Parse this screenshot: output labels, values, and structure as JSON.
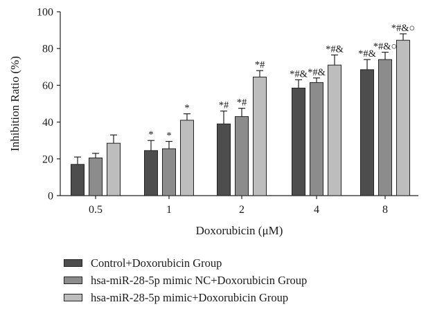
{
  "chart_data": {
    "type": "bar",
    "categories": [
      "0.5",
      "1",
      "2",
      "4",
      "8"
    ],
    "series": [
      {
        "name": "Control+Doxorubicin Group",
        "color": "#4d4d4d",
        "values": [
          17,
          24.5,
          39,
          58.5,
          68.5
        ],
        "errors": [
          4,
          5.5,
          7,
          4.5,
          5.5
        ],
        "annotations": [
          "",
          "*",
          "*#",
          "*#&",
          "*#&"
        ]
      },
      {
        "name": "hsa-miR-28-5p mimic NC+Doxorubicin Group",
        "color": "#8c8c8c",
        "values": [
          20.5,
          25.5,
          43,
          61.5,
          74
        ],
        "errors": [
          2.5,
          4,
          4.5,
          2.5,
          4
        ],
        "annotations": [
          "",
          "*",
          "*#",
          "*#&",
          "*#&○"
        ]
      },
      {
        "name": "hsa-miR-28-5p mimic+Doxorubicin Group",
        "color": "#bdbdbd",
        "values": [
          28.5,
          41,
          64.5,
          71,
          84.5
        ],
        "errors": [
          4.5,
          3.5,
          3.5,
          5.5,
          3.5
        ],
        "annotations": [
          "",
          "*",
          "*#",
          "*#&",
          "*#&○"
        ]
      }
    ],
    "title": "",
    "xlabel": "Doxorubicin (μM)",
    "ylabel": "Inhibition Ratio (%)",
    "ylim": [
      0,
      100
    ],
    "yticks": [
      "0",
      "20",
      "40",
      "60",
      "80",
      "100"
    ],
    "grid": false,
    "legend_position": "bottom-left"
  }
}
